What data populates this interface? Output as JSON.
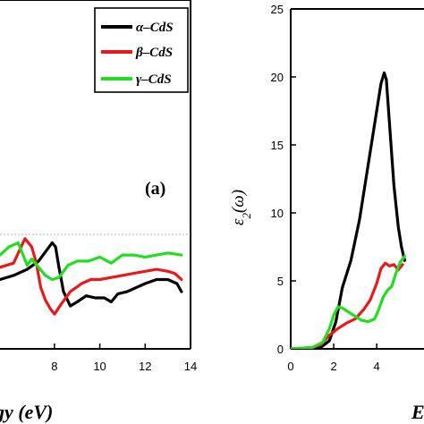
{
  "chart_data": [
    {
      "type": "line",
      "panel_label": "(a)",
      "xlabel": "gy (eV)",
      "ylabel": "",
      "xlim": [
        5.6,
        14
      ],
      "ylim": [
        -4.6,
        12.5
      ],
      "x_ticks": [
        "8",
        "10",
        "12",
        "14"
      ],
      "x_tick_values": [
        8,
        10,
        12,
        14
      ],
      "grid": false,
      "legend": "top-right",
      "reference_line": 0,
      "series": [
        {
          "name": "α–CdS",
          "color": "#000000",
          "x": [
            5.6,
            6.2,
            6.8,
            7.3,
            7.7,
            7.9,
            8.05,
            8.2,
            8.4,
            8.7,
            9.0,
            9.4,
            9.8,
            10.2,
            10.5,
            10.8,
            11.2,
            11.6,
            12.0,
            12.5,
            13.0,
            13.4,
            13.6
          ],
          "y": [
            -1.2,
            -1.0,
            -0.7,
            -0.3,
            0.3,
            0.6,
            0.4,
            -0.6,
            -1.8,
            -2.5,
            -2.3,
            -2.0,
            -2.1,
            -2.1,
            -2.3,
            -1.9,
            -1.8,
            -1.6,
            -1.4,
            -1.2,
            -1.2,
            -1.4,
            -1.8
          ]
        },
        {
          "name": "β–CdS",
          "color": "#e8191a",
          "x": [
            5.6,
            6.2,
            6.7,
            7.0,
            7.2,
            7.4,
            7.6,
            7.8,
            8.0,
            8.3,
            8.7,
            9.2,
            9.6,
            10.0,
            10.5,
            11.0,
            11.5,
            12.0,
            12.5,
            13.0,
            13.3,
            13.6
          ],
          "y": [
            -0.6,
            -0.4,
            0.8,
            0.4,
            -0.4,
            -1.6,
            -2.2,
            -2.6,
            -2.9,
            -2.4,
            -1.8,
            -1.4,
            -1.2,
            -1.2,
            -1.1,
            -1.0,
            -0.9,
            -0.8,
            -0.7,
            -0.8,
            -0.9,
            -1.2
          ]
        },
        {
          "name": "γ–CdS",
          "color": "#22dd22",
          "x": [
            5.6,
            6.0,
            6.4,
            6.8,
            7.0,
            7.3,
            7.6,
            7.9,
            8.2,
            8.6,
            9.0,
            9.5,
            10.0,
            10.5,
            11.0,
            11.5,
            12.0,
            12.5,
            13.0,
            13.6
          ],
          "y": [
            0.0,
            0.4,
            0.6,
            -0.5,
            -0.2,
            -0.6,
            -1.0,
            -1.2,
            -1.1,
            -0.5,
            -0.3,
            -0.3,
            -0.1,
            -0.4,
            0.0,
            0.0,
            -0.1,
            0.0,
            0.1,
            0.0
          ]
        }
      ]
    },
    {
      "type": "line",
      "ylabel": "ε2(ω)",
      "ylabel_main": "ε",
      "ylabel_sub": "2",
      "ylabel_rest": "(ω)",
      "xlabel": "E",
      "xlim": [
        0,
        6.2
      ],
      "ylim": [
        0,
        25
      ],
      "x_ticks": [
        "0",
        "2",
        "4"
      ],
      "x_tick_values": [
        0,
        2,
        4
      ],
      "y_ticks": [
        "0",
        "5",
        "10",
        "15",
        "20",
        "25"
      ],
      "y_tick_values": [
        0,
        5,
        10,
        15,
        20,
        25
      ],
      "grid": false,
      "series": [
        {
          "name": "α–CdS",
          "color": "#000000",
          "x": [
            0,
            0.8,
            1.4,
            1.8,
            2.1,
            2.4,
            2.8,
            3.2,
            3.5,
            3.8,
            4.0,
            4.2,
            4.35,
            4.45,
            4.6,
            4.8,
            5.0,
            5.15,
            5.3
          ],
          "y": [
            0,
            0.05,
            0.1,
            0.6,
            2.0,
            4.5,
            6.5,
            9.5,
            12.5,
            15.5,
            17.5,
            19.5,
            20.3,
            19.8,
            16.5,
            12.0,
            9.0,
            7.5,
            6.5
          ]
        },
        {
          "name": "β–CdS",
          "color": "#e8191a",
          "x": [
            0,
            1.0,
            1.4,
            1.8,
            2.2,
            2.6,
            3.0,
            3.4,
            3.7,
            4.0,
            4.2,
            4.4,
            4.6,
            4.8,
            5.0,
            5.2
          ],
          "y": [
            0,
            0.1,
            0.3,
            1.0,
            1.5,
            1.9,
            2.2,
            2.9,
            3.6,
            4.8,
            5.9,
            6.3,
            6.1,
            6.2,
            5.8,
            6.2
          ]
        },
        {
          "name": "γ–CdS",
          "color": "#22dd22",
          "x": [
            0,
            1.0,
            1.5,
            1.8,
            2.0,
            2.2,
            2.4,
            2.7,
            3.0,
            3.3,
            3.6,
            3.9,
            4.1,
            4.3,
            4.5,
            4.7,
            4.9,
            5.1,
            5.3
          ],
          "y": [
            0,
            0.1,
            0.5,
            1.5,
            2.5,
            3.1,
            3.0,
            2.7,
            2.4,
            2.1,
            2.0,
            2.2,
            2.9,
            3.8,
            4.3,
            4.6,
            5.6,
            6.4,
            6.8
          ]
        }
      ]
    }
  ]
}
